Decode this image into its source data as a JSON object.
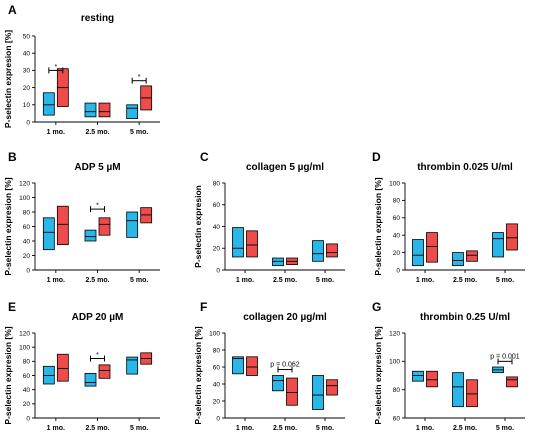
{
  "colors": {
    "group1": "#29b6e8",
    "group2": "#ef4b4b",
    "outline": "#000000"
  },
  "chart_data": [
    {
      "id": "A",
      "panel_label": "A",
      "type": "box",
      "title": "resting",
      "ylabel": "P-selectin expresion [%]",
      "ylim": [
        0,
        50
      ],
      "yticks": [
        0,
        10,
        20,
        30,
        40,
        50
      ],
      "categories": [
        "1 mo.",
        "2.5 mo.",
        "5 mo."
      ],
      "boxes": [
        [
          {
            "low": 4,
            "median": 10,
            "high": 17
          },
          {
            "low": 9,
            "median": 20,
            "high": 31
          }
        ],
        [
          {
            "low": 3,
            "median": 6,
            "high": 11
          },
          {
            "low": 3,
            "median": 6,
            "high": 11
          }
        ],
        [
          {
            "low": 2,
            "median": 8,
            "high": 10
          },
          {
            "low": 7,
            "median": 14,
            "high": 21
          }
        ]
      ],
      "annotations": [
        {
          "category": 0,
          "text": "*",
          "y": 30
        },
        {
          "category": 2,
          "text": "*",
          "y": 24
        }
      ]
    },
    {
      "id": "B",
      "panel_label": "B",
      "type": "box",
      "title": "ADP 5 µM",
      "ylabel": "P-selectin expresion [%]",
      "ylim": [
        0,
        120
      ],
      "yticks": [
        0,
        20,
        40,
        60,
        80,
        100,
        120
      ],
      "categories": [
        "1 mo.",
        "2.5 mo.",
        "5 mo."
      ],
      "boxes": [
        [
          {
            "low": 28,
            "median": 52,
            "high": 72
          },
          {
            "low": 35,
            "median": 63,
            "high": 88
          }
        ],
        [
          {
            "low": 40,
            "median": 46,
            "high": 55
          },
          {
            "low": 48,
            "median": 63,
            "high": 72
          }
        ],
        [
          {
            "low": 45,
            "median": 68,
            "high": 80
          },
          {
            "low": 65,
            "median": 76,
            "high": 86
          }
        ]
      ],
      "annotations": [
        {
          "category": 1,
          "text": "*",
          "y": 84
        }
      ]
    },
    {
      "id": "C",
      "panel_label": "C",
      "type": "box",
      "title": "collagen 5 µg/ml",
      "ylabel": "P-selectin expresion",
      "ylim": [
        0,
        80
      ],
      "yticks": [
        0,
        20,
        40,
        60,
        80
      ],
      "categories": [
        "1 mo.",
        "2.5 mo.",
        "5 mo."
      ],
      "boxes": [
        [
          {
            "low": 12,
            "median": 20,
            "high": 39
          },
          {
            "low": 12,
            "median": 23,
            "high": 36
          }
        ],
        [
          {
            "low": 4,
            "median": 8,
            "high": 11
          },
          {
            "low": 5,
            "median": 8,
            "high": 11
          }
        ],
        [
          {
            "low": 8,
            "median": 15,
            "high": 27
          },
          {
            "low": 12,
            "median": 16,
            "high": 24
          }
        ]
      ],
      "annotations": []
    },
    {
      "id": "D",
      "panel_label": "D",
      "type": "box",
      "title": "thrombin 0.025 U/ml",
      "ylabel": "P-selectin expresion [%]",
      "ylim": [
        0,
        100
      ],
      "yticks": [
        0,
        20,
        40,
        60,
        80,
        100
      ],
      "categories": [
        "1 mo.",
        "2.5 mo.",
        "5 mo."
      ],
      "boxes": [
        [
          {
            "low": 5,
            "median": 17,
            "high": 35
          },
          {
            "low": 9,
            "median": 27,
            "high": 43
          }
        ],
        [
          {
            "low": 5,
            "median": 11,
            "high": 20
          },
          {
            "low": 10,
            "median": 17,
            "high": 22
          }
        ],
        [
          {
            "low": 15,
            "median": 36,
            "high": 43
          },
          {
            "low": 23,
            "median": 37,
            "high": 53
          }
        ]
      ],
      "annotations": []
    },
    {
      "id": "E",
      "panel_label": "E",
      "type": "box",
      "title": "ADP 20 µM",
      "ylabel": "P-selectin expresion [%]",
      "ylim": [
        0,
        120
      ],
      "yticks": [
        0,
        20,
        40,
        60,
        80,
        100,
        120
      ],
      "categories": [
        "1 mo.",
        "2.5 mo.",
        "5 mo."
      ],
      "boxes": [
        [
          {
            "low": 48,
            "median": 60,
            "high": 73
          },
          {
            "low": 52,
            "median": 70,
            "high": 90
          }
        ],
        [
          {
            "low": 45,
            "median": 50,
            "high": 63
          },
          {
            "low": 56,
            "median": 67,
            "high": 75
          }
        ],
        [
          {
            "low": 62,
            "median": 82,
            "high": 86
          },
          {
            "low": 76,
            "median": 84,
            "high": 92
          }
        ]
      ],
      "annotations": [
        {
          "category": 1,
          "text": "*",
          "y": 84
        }
      ]
    },
    {
      "id": "F",
      "panel_label": "F",
      "type": "box",
      "title": "collagen 20 µg/ml",
      "ylabel": "P-selectin expresion [%]",
      "ylim": [
        0,
        100
      ],
      "yticks": [
        0,
        20,
        40,
        60,
        80,
        100
      ],
      "categories": [
        "1 mo.",
        "2.5 mo.",
        "5 mo."
      ],
      "boxes": [
        [
          {
            "low": 52,
            "median": 70,
            "high": 72
          },
          {
            "low": 50,
            "median": 60,
            "high": 72
          }
        ],
        [
          {
            "low": 32,
            "median": 44,
            "high": 50
          },
          {
            "low": 15,
            "median": 30,
            "high": 47
          }
        ],
        [
          {
            "low": 10,
            "median": 27,
            "high": 50
          },
          {
            "low": 27,
            "median": 38,
            "high": 45
          }
        ]
      ],
      "annotations": [
        {
          "category": 1,
          "text": "p = 0.062",
          "y": 57
        }
      ]
    },
    {
      "id": "G",
      "panel_label": "G",
      "type": "box",
      "title": "thrombin 0.25 U/ml",
      "ylabel": "P-selectin expresion [%]",
      "ylim": [
        60,
        120
      ],
      "yticks": [
        60,
        80,
        100,
        120
      ],
      "categories": [
        "1 mo.",
        "2.5 mo.",
        "5 mo."
      ],
      "boxes": [
        [
          {
            "low": 86,
            "median": 90,
            "high": 93
          },
          {
            "low": 82,
            "median": 87,
            "high": 93
          }
        ],
        [
          {
            "low": 68,
            "median": 82,
            "high": 92
          },
          {
            "low": 68,
            "median": 77,
            "high": 87
          }
        ],
        [
          {
            "low": 92,
            "median": 94,
            "high": 96
          },
          {
            "low": 82,
            "median": 87,
            "high": 89
          }
        ]
      ],
      "annotations": [
        {
          "category": 2,
          "text": "p = 0.001",
          "y": 100
        }
      ]
    }
  ]
}
